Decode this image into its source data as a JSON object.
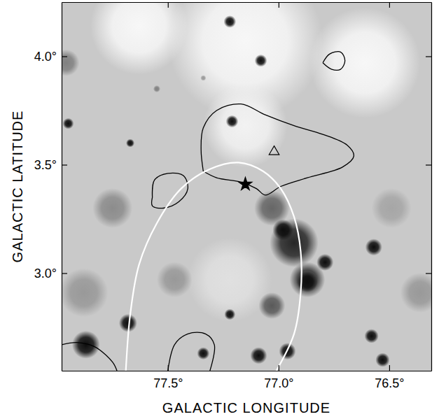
{
  "chart_data": {
    "type": "image",
    "xlabel": "GALACTIC LONGITUDE",
    "ylabel": "GALACTIC LATITUDE",
    "xlim": [
      77.98,
      76.31
    ],
    "ylim": [
      2.55,
      4.25
    ],
    "xticks": [
      {
        "value": 77.5,
        "label": "77.5°"
      },
      {
        "value": 77.0,
        "label": "77.0°"
      },
      {
        "value": 76.5,
        "label": "76.5°"
      }
    ],
    "yticks": [
      {
        "value": 3.0,
        "label": "3.0°"
      },
      {
        "value": 3.5,
        "label": "3.5°"
      },
      {
        "value": 4.0,
        "label": "4.0°"
      }
    ],
    "sources": {
      "x": [
        77.15,
        76.61,
        77.63,
        77.15,
        77.22,
        76.93,
        76.87,
        77.03,
        77.03,
        77.75,
        77.88,
        77.47,
        76.49,
        76.36,
        77.96,
        77.22,
        77.08,
        77.21,
        77.95,
        77.67,
        77.55,
        77.34,
        76.57,
        76.79,
        77.68,
        77.87,
        77.22,
        76.58,
        76.53,
        76.96,
        77.09,
        77.34,
        76.98,
        76.87
      ],
      "y": [
        4.07,
        3.97,
        4.14,
        3.68,
        2.97,
        3.14,
        2.97,
        3.3,
        2.85,
        3.3,
        2.91,
        2.97,
        3.3,
        2.91,
        3.97,
        4.16,
        3.98,
        3.7,
        3.69,
        3.6,
        3.85,
        3.9,
        3.12,
        3.05,
        2.77,
        2.67,
        2.81,
        2.71,
        2.6,
        2.64,
        2.62,
        2.63,
        3.2,
        2.96
      ],
      "size": [
        0.35,
        0.25,
        0.22,
        0.19,
        0.19,
        0.11,
        0.08,
        0.08,
        0.06,
        0.09,
        0.11,
        0.08,
        0.09,
        0.09,
        0.06,
        0.028,
        0.028,
        0.028,
        0.025,
        0.019,
        0.016,
        0.013,
        0.038,
        0.038,
        0.041,
        0.063,
        0.025,
        0.032,
        0.032,
        0.038,
        0.038,
        0.028,
        0.047,
        0.047
      ],
      "level": [
        0.97,
        0.97,
        0.97,
        0.95,
        0.88,
        0.15,
        0.2,
        0.4,
        0.35,
        0.55,
        0.6,
        0.6,
        0.65,
        0.6,
        0.5,
        0.05,
        0.05,
        0.05,
        0.05,
        0.05,
        0.5,
        0.6,
        0.05,
        0.05,
        0.05,
        0.05,
        0.05,
        0.05,
        0.05,
        0.05,
        0.05,
        0.05,
        0.05,
        0.05
      ]
    },
    "contours": [
      {
        "x": [
          77.34,
          77.35,
          77.34,
          77.28,
          77.17,
          77.06,
          76.93,
          76.8,
          76.69,
          76.66,
          76.71,
          76.87,
          76.99,
          77.06,
          77.1,
          77.17,
          77.28,
          77.34
        ],
        "y": [
          3.47,
          3.57,
          3.67,
          3.75,
          3.78,
          3.73,
          3.68,
          3.64,
          3.59,
          3.54,
          3.49,
          3.44,
          3.4,
          3.36,
          3.39,
          3.42,
          3.44,
          3.47
        ],
        "color": "#000000"
      },
      {
        "x": [
          76.8,
          76.77,
          76.72,
          76.7,
          76.72,
          76.76,
          76.8
        ],
        "y": [
          3.97,
          4.01,
          4.02,
          3.98,
          3.94,
          3.94,
          3.97
        ],
        "color": "#000000"
      },
      {
        "x": [
          77.57,
          77.56,
          77.5,
          77.43,
          77.41,
          77.45,
          77.52,
          77.57,
          77.57
        ],
        "y": [
          3.35,
          3.43,
          3.46,
          3.45,
          3.39,
          3.33,
          3.3,
          3.31,
          3.35
        ],
        "color": "#000000"
      },
      {
        "x": [
          77.98,
          77.91,
          77.83,
          77.75,
          77.73
        ],
        "y": [
          2.67,
          2.68,
          2.66,
          2.59,
          2.55
        ],
        "color": "#000000"
      },
      {
        "x": [
          77.5,
          77.47,
          77.41,
          77.33,
          77.29,
          77.31
        ],
        "y": [
          2.55,
          2.67,
          2.72,
          2.72,
          2.67,
          2.55
        ],
        "color": "#000000"
      }
    ],
    "ellipse": {
      "x": [
        77.69,
        77.67,
        77.63,
        77.55,
        77.44,
        77.31,
        77.18,
        77.07,
        76.99,
        76.93,
        76.9,
        76.9,
        76.93,
        77.01
      ],
      "y": [
        2.55,
        2.81,
        3.04,
        3.23,
        3.39,
        3.48,
        3.51,
        3.47,
        3.39,
        3.26,
        3.1,
        2.91,
        2.72,
        2.55
      ],
      "color": "#ffffff"
    },
    "markers": [
      {
        "x": 77.15,
        "y": 3.41,
        "marker": "star",
        "color": "#000000"
      },
      {
        "x": 77.02,
        "y": 3.56,
        "marker": "triangle",
        "color": "#000000"
      }
    ]
  }
}
